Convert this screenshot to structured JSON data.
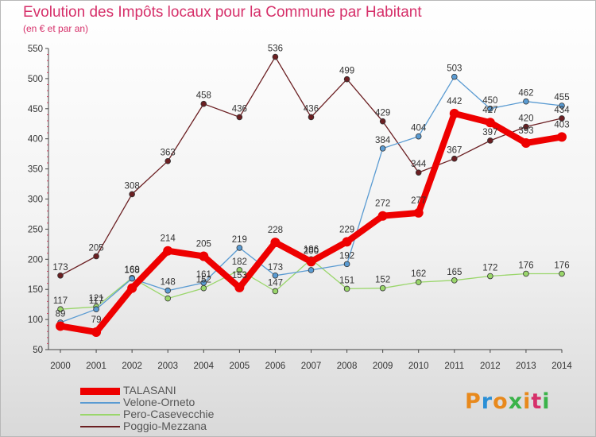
{
  "title": "Evolution des Impôts locaux pour la Commune par Habitant",
  "subtitle": "(en € et par an)",
  "logo": {
    "letters": [
      "P",
      "r",
      "o",
      "x",
      "i",
      "t",
      "i"
    ],
    "colors": [
      "#e8891c",
      "#2a8fd6",
      "#e8891c",
      "#3bb34a",
      "#e8891c",
      "#d6306a",
      "#3bb34a"
    ]
  },
  "chart_data": {
    "type": "line",
    "x": [
      "2000",
      "2001",
      "2002",
      "2003",
      "2004",
      "2005",
      "2006",
      "2007",
      "2008",
      "2009",
      "2010",
      "2011",
      "2012",
      "2013",
      "2014"
    ],
    "ylim": [
      50,
      550
    ],
    "yticks": [
      50,
      100,
      150,
      200,
      250,
      300,
      350,
      400,
      450,
      500,
      550
    ],
    "grid": false,
    "legend_position": "bottom-left",
    "series": [
      {
        "name": "Poggio-Mezzana",
        "color": "#6b1f22",
        "values": [
          173,
          205,
          308,
          363,
          458,
          436,
          536,
          436,
          499,
          429,
          344,
          367,
          397,
          420,
          434
        ]
      },
      {
        "name": "Pero-Casevecchie",
        "color": "#9ad66b",
        "values": [
          117,
          121,
          169,
          135,
          152,
          182,
          147,
          200,
          151,
          152,
          162,
          165,
          172,
          176,
          176
        ]
      },
      {
        "name": "Velone-Orneto",
        "color": "#5a9bd2",
        "values": [
          95,
          117,
          168,
          148,
          161,
          219,
          173,
          182,
          192,
          384,
          404,
          503,
          450,
          462,
          455
        ]
      },
      {
        "name": "TALASANI",
        "color": "#ee0000",
        "values": [
          89,
          79,
          152,
          214,
          205,
          153,
          228,
          196,
          229,
          272,
          277,
          442,
          427,
          393,
          403
        ]
      }
    ],
    "data_labels": [
      [
        "173",
        "205",
        "308",
        "363",
        "458",
        "436",
        "536",
        "436",
        "499",
        "429",
        "344",
        "367",
        "397",
        "420",
        "434"
      ],
      [
        "117",
        "121",
        "169",
        "",
        "152",
        "182",
        "147",
        "200",
        "151",
        "152",
        "162",
        "165",
        "172",
        "176",
        "176"
      ],
      [
        "",
        "117",
        "168",
        "148",
        "161",
        "219",
        "173",
        "",
        "192",
        "384",
        "404",
        "503",
        "450",
        "462",
        "455"
      ],
      [
        "89",
        "79",
        "",
        "214",
        "205",
        "153",
        "228",
        "196",
        "229",
        "272",
        "277",
        "442",
        "427",
        "393",
        "403"
      ]
    ],
    "legend_order": [
      "TALASANI",
      "Velone-Orneto",
      "Pero-Casevecchie",
      "Poggio-Mezzana"
    ]
  }
}
